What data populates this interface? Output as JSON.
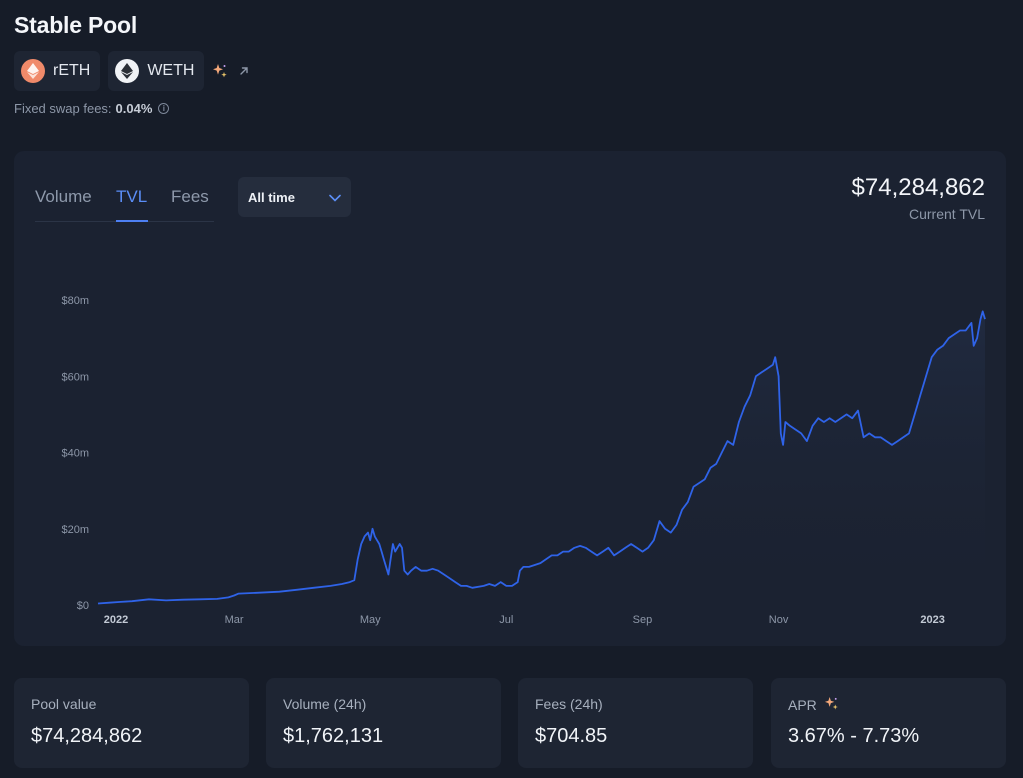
{
  "page": {
    "title": "Stable Pool",
    "tokens": [
      {
        "symbol": "rETH",
        "icon": "reth-icon",
        "color": "#f08a6a"
      },
      {
        "symbol": "WETH",
        "icon": "eth-icon",
        "color": "#f1f3f6"
      }
    ],
    "fees": {
      "label": "Fixed swap fees:",
      "value": "0.04%"
    }
  },
  "chart_panel": {
    "tabs": [
      {
        "label": "Volume",
        "active": false
      },
      {
        "label": "TVL",
        "active": true
      },
      {
        "label": "Fees",
        "active": false
      }
    ],
    "period": "All time",
    "headline_value": "$74,284,862",
    "headline_label": "Current TVL",
    "accent_color": "#2f63e8"
  },
  "chart_data": {
    "type": "line",
    "series": [
      {
        "values": [
          [
            0,
            0.4
          ],
          [
            10,
            0.6
          ],
          [
            20,
            0.8
          ],
          [
            30,
            1.0
          ],
          [
            45,
            1.5
          ],
          [
            60,
            1.2
          ],
          [
            75,
            1.4
          ],
          [
            90,
            1.5
          ],
          [
            105,
            1.6
          ],
          [
            115,
            2.0
          ],
          [
            120,
            2.5
          ],
          [
            124,
            3.0
          ],
          [
            140,
            3.2
          ],
          [
            160,
            3.5
          ],
          [
            175,
            4.0
          ],
          [
            190,
            4.5
          ],
          [
            205,
            5.0
          ],
          [
            215,
            5.5
          ],
          [
            222,
            6.0
          ],
          [
            226,
            6.5
          ],
          [
            229,
            12
          ],
          [
            232,
            16
          ],
          [
            235,
            18
          ],
          [
            238,
            19
          ],
          [
            240,
            17
          ],
          [
            242,
            20
          ],
          [
            244,
            18
          ],
          [
            246,
            17
          ],
          [
            248,
            16
          ],
          [
            250,
            14
          ],
          [
            252,
            12
          ],
          [
            254,
            10
          ],
          [
            256,
            8
          ],
          [
            258,
            12
          ],
          [
            260,
            16
          ],
          [
            262,
            14
          ],
          [
            264,
            15
          ],
          [
            266,
            16
          ],
          [
            268,
            15
          ],
          [
            270,
            9
          ],
          [
            273,
            8
          ],
          [
            276,
            9
          ],
          [
            280,
            10
          ],
          [
            285,
            9
          ],
          [
            290,
            9
          ],
          [
            295,
            9.5
          ],
          [
            300,
            9
          ],
          [
            305,
            8
          ],
          [
            310,
            7
          ],
          [
            315,
            6
          ],
          [
            320,
            5
          ],
          [
            325,
            5
          ],
          [
            330,
            4.5
          ],
          [
            340,
            5
          ],
          [
            345,
            5.5
          ],
          [
            350,
            5
          ],
          [
            355,
            6
          ],
          [
            360,
            5
          ],
          [
            365,
            5
          ],
          [
            370,
            6
          ],
          [
            372,
            9
          ],
          [
            375,
            10
          ],
          [
            380,
            10
          ],
          [
            385,
            10.5
          ],
          [
            390,
            11
          ],
          [
            395,
            12
          ],
          [
            400,
            13
          ],
          [
            405,
            13
          ],
          [
            410,
            14
          ],
          [
            415,
            14
          ],
          [
            420,
            15
          ],
          [
            425,
            15.5
          ],
          [
            430,
            15
          ],
          [
            435,
            14
          ],
          [
            440,
            13
          ],
          [
            445,
            14
          ],
          [
            450,
            15
          ],
          [
            455,
            13
          ],
          [
            460,
            14
          ],
          [
            465,
            15
          ],
          [
            470,
            16
          ],
          [
            475,
            15
          ],
          [
            480,
            14
          ],
          [
            485,
            15
          ],
          [
            490,
            17
          ],
          [
            495,
            22
          ],
          [
            500,
            20
          ],
          [
            505,
            19
          ],
          [
            510,
            21
          ],
          [
            515,
            25
          ],
          [
            520,
            27
          ],
          [
            525,
            31
          ],
          [
            530,
            32
          ],
          [
            535,
            33
          ],
          [
            540,
            36
          ],
          [
            545,
            37
          ],
          [
            550,
            40
          ],
          [
            555,
            43
          ],
          [
            560,
            42
          ],
          [
            565,
            48
          ],
          [
            570,
            52
          ],
          [
            575,
            55
          ],
          [
            580,
            60
          ],
          [
            585,
            61
          ],
          [
            590,
            62
          ],
          [
            595,
            63
          ],
          [
            597,
            65
          ],
          [
            600,
            60
          ],
          [
            602,
            45
          ],
          [
            604,
            42
          ],
          [
            606,
            48
          ],
          [
            610,
            47
          ],
          [
            615,
            46
          ],
          [
            620,
            45
          ],
          [
            625,
            43
          ],
          [
            630,
            47
          ],
          [
            635,
            49
          ],
          [
            640,
            48
          ],
          [
            645,
            49
          ],
          [
            650,
            48
          ],
          [
            655,
            49
          ],
          [
            660,
            50
          ],
          [
            665,
            49
          ],
          [
            670,
            51
          ],
          [
            675,
            44
          ],
          [
            680,
            45
          ],
          [
            685,
            44
          ],
          [
            690,
            44
          ],
          [
            695,
            43
          ],
          [
            700,
            42
          ],
          [
            705,
            43
          ],
          [
            710,
            44
          ],
          [
            715,
            45
          ],
          [
            720,
            50
          ],
          [
            725,
            55
          ],
          [
            730,
            60
          ],
          [
            735,
            65
          ],
          [
            740,
            67
          ],
          [
            745,
            68
          ],
          [
            750,
            70
          ],
          [
            755,
            71
          ],
          [
            760,
            72
          ],
          [
            765,
            72
          ],
          [
            770,
            74
          ],
          [
            772,
            68
          ],
          [
            775,
            70
          ],
          [
            778,
            75
          ],
          [
            780,
            77
          ],
          [
            782,
            75
          ]
        ]
      }
    ],
    "x_ticks": [
      "2022",
      "Mar",
      "May",
      "Jul",
      "Sep",
      "Nov",
      "2023"
    ],
    "x_tick_positions": [
      0,
      120,
      240,
      360,
      480,
      600,
      720
    ],
    "y_ticks": [
      "$0",
      "$20m",
      "$40m",
      "$60m",
      "$80m"
    ],
    "y_tick_values": [
      0,
      20,
      40,
      60,
      80
    ],
    "ylim": [
      0,
      80
    ],
    "xlim": [
      0,
      782
    ],
    "grid": false,
    "line_color": "#2f63e8"
  },
  "stats": [
    {
      "label": "Pool value",
      "value": "$74,284,862",
      "icon": ""
    },
    {
      "label": "Volume (24h)",
      "value": "$1,762,131",
      "icon": ""
    },
    {
      "label": "Fees (24h)",
      "value": "$704.85",
      "icon": ""
    },
    {
      "label": "APR",
      "value": "3.67% - 7.73%",
      "icon": "sparkle-icon"
    }
  ]
}
